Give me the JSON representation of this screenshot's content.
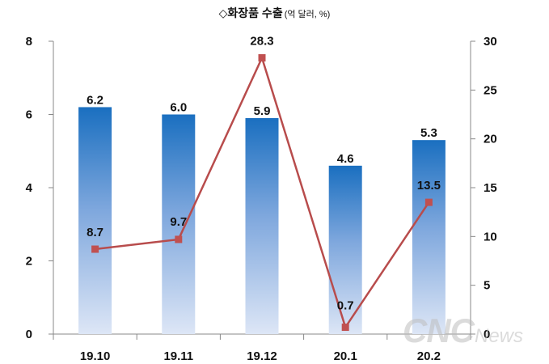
{
  "chart_data": {
    "type": "bar",
    "title": "◇화장품 수출",
    "subtitle": "(억 달러, %)",
    "categories": [
      "19.10",
      "19.11",
      "19.12",
      "20.1",
      "20.2"
    ],
    "series": [
      {
        "values": [
          6.2,
          6.0,
          5.9,
          4.6,
          5.3
        ],
        "type": "bar",
        "axis": "left"
      },
      {
        "values": [
          8.7,
          9.7,
          28.3,
          0.7,
          13.5
        ],
        "type": "line",
        "axis": "right"
      }
    ],
    "bar_labels": [
      "6.2",
      "6.0",
      "5.9",
      "4.6",
      "5.3"
    ],
    "line_labels": [
      "8.7",
      "9.7",
      "28.3",
      "0.7",
      "13.5"
    ],
    "y_left": {
      "lim": [
        0,
        8
      ],
      "ticks": [
        "0",
        "2",
        "4",
        "6",
        "8"
      ]
    },
    "y_right": {
      "lim": [
        0,
        30
      ],
      "ticks": [
        "0",
        "5",
        "10",
        "15",
        "20",
        "25",
        "30"
      ]
    },
    "grid": false,
    "legend": "none",
    "colors": {
      "bar_top": "#1a6fc0",
      "bar_bottom": "#dde6f6",
      "line": "#b84c4c",
      "marker": "#c05050",
      "axis": "#888888"
    }
  },
  "watermark": {
    "main": "CNC",
    "sub": "News"
  }
}
